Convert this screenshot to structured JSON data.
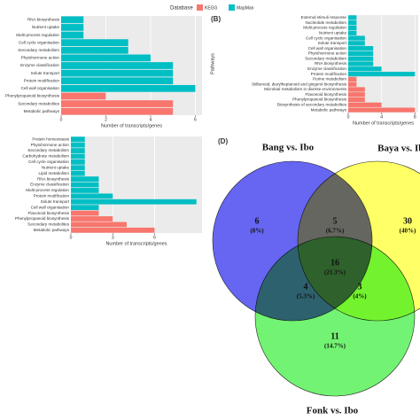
{
  "legend": {
    "title": "Database",
    "items": [
      {
        "name": "KEGG",
        "color": "#f8766d"
      },
      {
        "name": "MapMan",
        "color": "#00bfc4"
      }
    ]
  },
  "chart_data": [
    {
      "type": "barh",
      "x_label": "Number of transcripts/genes",
      "categories": [
        "RNA biosynthesis",
        "Nutrient uptake",
        "Multi-process regulation",
        "Cell cycle organisation",
        "Secondary metabolism",
        "Phytohormone action",
        "Enzyme classification",
        "Solute transport",
        "Protein modification",
        "Cell wall organisation",
        "Phenylpropanoid biosynthesis",
        "Secondary metabolites",
        "Metabolic pathways"
      ],
      "values": [
        1,
        1,
        1,
        3,
        3,
        4,
        5,
        5,
        5,
        6,
        2,
        5,
        5
      ],
      "colors": [
        "#00bfc4",
        "#00bfc4",
        "#00bfc4",
        "#00bfc4",
        "#00bfc4",
        "#00bfc4",
        "#00bfc4",
        "#00bfc4",
        "#00bfc4",
        "#00bfc4",
        "#f8766d",
        "#f8766d",
        "#f8766d"
      ],
      "xlim": [
        0,
        6.3
      ],
      "xticks": [
        0,
        2,
        4,
        6
      ],
      "grid": true
    },
    {
      "type": "barh",
      "panel": "(B)",
      "x_label": "Number of transcripts/genes",
      "y_label": "Pathways",
      "categories": [
        "External stimuli response",
        "Nucleotide metabolism",
        "Multi-process regulation",
        "Nutrient uptake",
        "Cell cycle organisation",
        "Solute transport",
        "Cell wall organisation",
        "Phytohormone action",
        "Secondary metabolism",
        "RNA biosynthesis",
        "Enzyme classification",
        "Protein modification",
        "Purine metabolism",
        "Stilbenoid, diarylheptanoid and gingerol biosynthesis",
        "Microbial metabolism in diverse environments",
        "Flavonoid biosynthesis",
        "Phenylpropanoid biosynthesis",
        "Biosynthesis of secondary metabolites",
        "Metabolic pathways"
      ],
      "values": [
        1,
        1,
        1,
        1,
        2,
        2,
        3,
        3,
        3,
        3,
        4,
        8,
        1,
        1,
        2,
        2,
        2,
        4,
        8
      ],
      "colors": [
        "#00bfc4",
        "#00bfc4",
        "#00bfc4",
        "#00bfc4",
        "#00bfc4",
        "#00bfc4",
        "#00bfc4",
        "#00bfc4",
        "#00bfc4",
        "#00bfc4",
        "#00bfc4",
        "#00bfc4",
        "#f8766d",
        "#f8766d",
        "#f8766d",
        "#f8766d",
        "#f8766d",
        "#f8766d",
        "#f8766d"
      ],
      "xlim": [
        0,
        8.4
      ],
      "xticks": [
        0,
        4,
        8
      ],
      "grid": true
    },
    {
      "type": "barh",
      "x_label": "Number of transcripts/genes",
      "categories": [
        "Protein homeostasis",
        "Phytohormone action",
        "Secondary metabolism",
        "Carbohydrate metabolism",
        "Cell cycle organisation",
        "Nutrient uptake",
        "Lipid metabolism",
        "RNA biosynthesis",
        "Enzyme classification",
        "Multi-process regulation",
        "Protein modification",
        "Solute transport",
        "Cell wall organisation",
        "Flavonoid biosynthesis",
        "Phenylpropanoid biosynthesis",
        "Secondary metabolites",
        "Metabolic pathways"
      ],
      "values": [
        1,
        1,
        1,
        1,
        1,
        1,
        1,
        2,
        2,
        2,
        3,
        9,
        2,
        2,
        3,
        4,
        6
      ],
      "colors": [
        "#00bfc4",
        "#00bfc4",
        "#00bfc4",
        "#00bfc4",
        "#00bfc4",
        "#00bfc4",
        "#00bfc4",
        "#00bfc4",
        "#00bfc4",
        "#00bfc4",
        "#00bfc4",
        "#00bfc4",
        "#00bfc4",
        "#f8766d",
        "#f8766d",
        "#f8766d",
        "#f8766d"
      ],
      "xlim": [
        0,
        9.4
      ],
      "xticks": [
        0,
        3,
        6
      ],
      "grid": true
    },
    {
      "type": "venn",
      "panel": "(D)",
      "sets": [
        {
          "name": "Bang vs. Ibo",
          "color": "#4040f0"
        },
        {
          "name": "Baya vs. Ibo",
          "color": "#ffff40"
        },
        {
          "name": "Fonk vs. Ibo",
          "color": "#50f050"
        }
      ],
      "regions": [
        {
          "value": 6,
          "label": "(8%)"
        },
        {
          "value": 5,
          "label": "(6.7%)"
        },
        {
          "value": 30,
          "label": "(40%)"
        },
        {
          "value": 16,
          "label": "(21.3%)"
        },
        {
          "value": 4,
          "label": "(5.3%)"
        },
        {
          "value": 3,
          "label": "(4%)"
        },
        {
          "value": 11,
          "label": "(14.7%)"
        }
      ]
    }
  ]
}
